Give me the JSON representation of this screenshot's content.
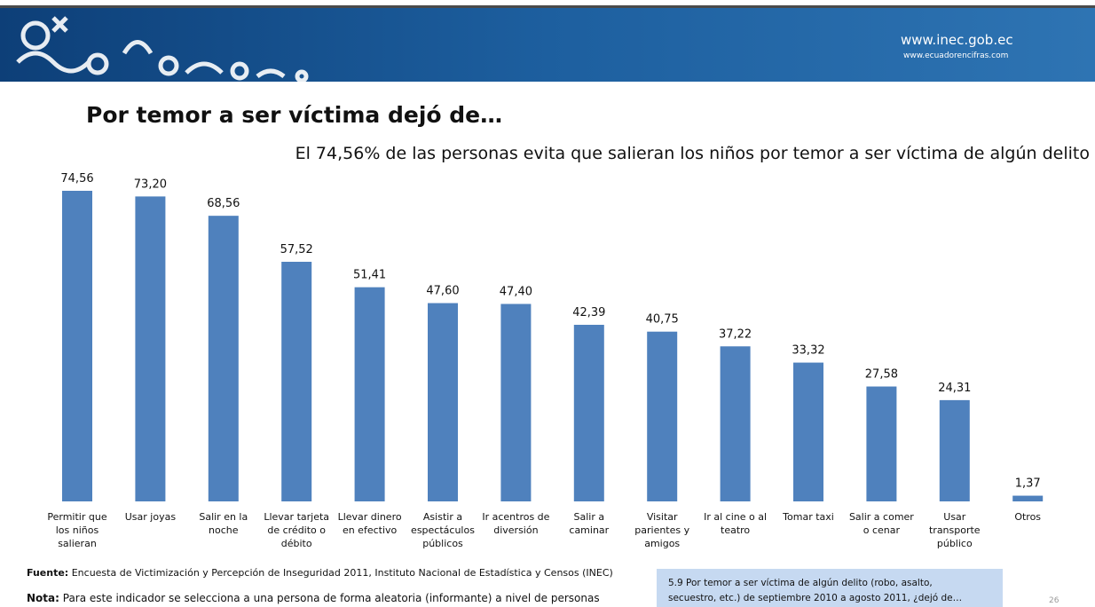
{
  "header": {
    "site": "www.inec.gob.ec",
    "site2": "www.ecuadorencifras.com"
  },
  "chart_data": {
    "type": "bar",
    "title": "Por temor a ser víctima dejó de…",
    "subtitle": "El 74,56% de las personas evita que salieran los niños por temor a ser víctima de algún delito",
    "categories": [
      [
        "Permitir que",
        "los niños",
        "salieran"
      ],
      [
        "Usar joyas"
      ],
      [
        "Salir en la",
        "noche"
      ],
      [
        "Llevar tarjeta",
        "de crédito o",
        "débito"
      ],
      [
        "Llevar dinero",
        "en efectivo"
      ],
      [
        "Asistir a",
        "espectáculos",
        "públicos"
      ],
      [
        "Ir acentros de",
        "diversión"
      ],
      [
        "Salir a",
        "caminar"
      ],
      [
        "Visitar",
        "parientes y",
        "amigos"
      ],
      [
        "Ir al cine o al",
        "teatro"
      ],
      [
        "Tomar taxi"
      ],
      [
        "Salir a comer",
        "o cenar"
      ],
      [
        "Usar",
        "transporte",
        "público"
      ],
      [
        "Otros"
      ]
    ],
    "values": [
      74.56,
      73.2,
      68.56,
      57.52,
      51.41,
      47.6,
      47.4,
      42.39,
      40.75,
      37.22,
      33.32,
      27.58,
      24.31,
      1.37
    ],
    "value_labels": [
      "74,56",
      "73,20",
      "68,56",
      "57,52",
      "51,41",
      "47,60",
      "47,40",
      "42,39",
      "40,75",
      "37,22",
      "33,32",
      "27,58",
      "24,31",
      "1,37"
    ],
    "color": "#4f81bd"
  },
  "footer": {
    "source_label": "Fuente:",
    "source": "Encuesta de Victimización y Percepción de Inseguridad 2011, Instituto Nacional de Estadística y Censos (INEC)",
    "note_label": "Nota:",
    "note": "Para este indicador se selecciona a una persona  de forma aleatoria (informante)  a nivel de personas",
    "question": [
      "5.9 Por temor a ser víctima de algún delito (robo, asalto,",
      "secuestro, etc.) de septiembre 2010 a agosto 2011, ¿dejó de…"
    ],
    "page": "26"
  }
}
